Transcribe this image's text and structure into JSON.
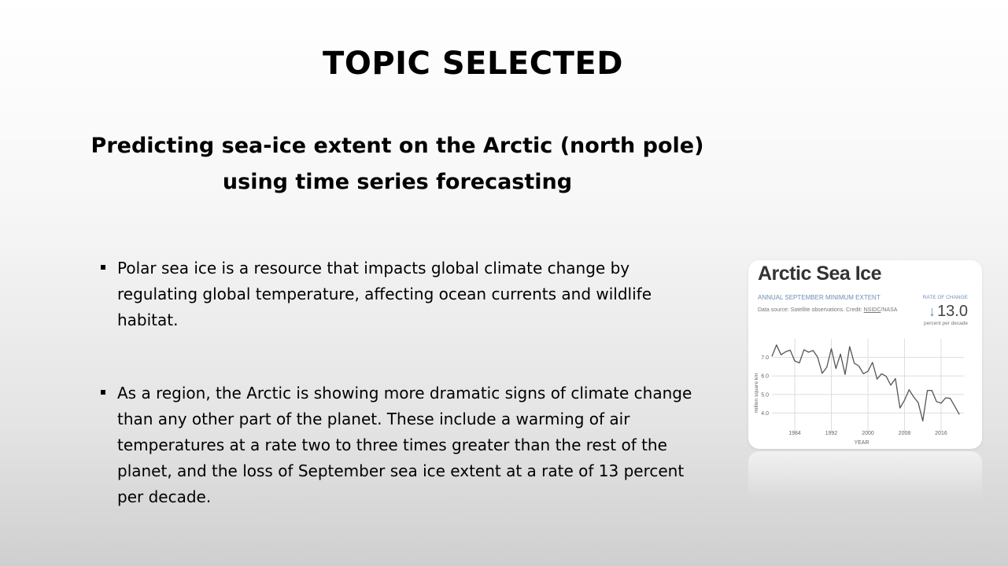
{
  "slide": {
    "title": "TOPIC SELECTED",
    "subtitle_line1": "Predicting sea-ice extent on the Arctic (north pole)",
    "subtitle_line2": "using time series forecasting",
    "bullets": [
      "Polar sea ice is a resource that impacts global climate change by regulating global temperature, affecting ocean currents and wildlife habitat.",
      "As a region, the Arctic is showing more dramatic signs of climate change than any other part of the planet. These include a warming of air temperatures at a rate two to three times greater than the rest of the planet, and the loss of September sea ice extent at a rate of 13 percent per decade."
    ]
  },
  "card": {
    "title": "Arctic Sea Ice",
    "subtitle": "ANNUAL SEPTEMBER MINIMUM EXTENT",
    "source_prefix": "Data source: Satellite observations. Credit: ",
    "source_link": "NSIDC",
    "source_suffix": "/NASA",
    "rate_label": "RATE OF CHANGE",
    "rate_arrow": "↓",
    "rate_value": "13.0",
    "rate_unit": "percent per decade"
  },
  "chart_data": {
    "type": "line",
    "title": "Arctic Sea Ice",
    "xlabel": "YEAR",
    "ylabel": "million square km",
    "xlim": [
      1979,
      2021
    ],
    "ylim": [
      3.0,
      8.0
    ],
    "x_ticks": [
      1984,
      1992,
      2000,
      2008,
      2016
    ],
    "y_ticks": [
      "4.0",
      "5.0",
      "6.0",
      "7.0"
    ],
    "grid": true,
    "colors": {
      "line": "#555555",
      "grid": "#dddddd",
      "axis_text": "#666666"
    },
    "x": [
      1979,
      1980,
      1981,
      1982,
      1983,
      1984,
      1985,
      1986,
      1987,
      1988,
      1989,
      1990,
      1991,
      1992,
      1993,
      1994,
      1995,
      1996,
      1997,
      1998,
      1999,
      2000,
      2001,
      2002,
      2003,
      2004,
      2005,
      2006,
      2007,
      2008,
      2009,
      2010,
      2011,
      2012,
      2013,
      2014,
      2015,
      2016,
      2017,
      2018,
      2019,
      2020
    ],
    "values": [
      7.05,
      7.67,
      7.14,
      7.3,
      7.39,
      6.81,
      6.7,
      7.41,
      7.28,
      7.37,
      7.01,
      6.14,
      6.47,
      7.47,
      6.4,
      7.18,
      6.08,
      7.58,
      6.69,
      6.54,
      6.12,
      6.25,
      6.73,
      5.83,
      6.12,
      5.98,
      5.5,
      5.86,
      4.27,
      4.69,
      5.26,
      4.87,
      4.56,
      3.57,
      5.21,
      5.22,
      4.62,
      4.53,
      4.82,
      4.79,
      4.36,
      3.92
    ]
  }
}
